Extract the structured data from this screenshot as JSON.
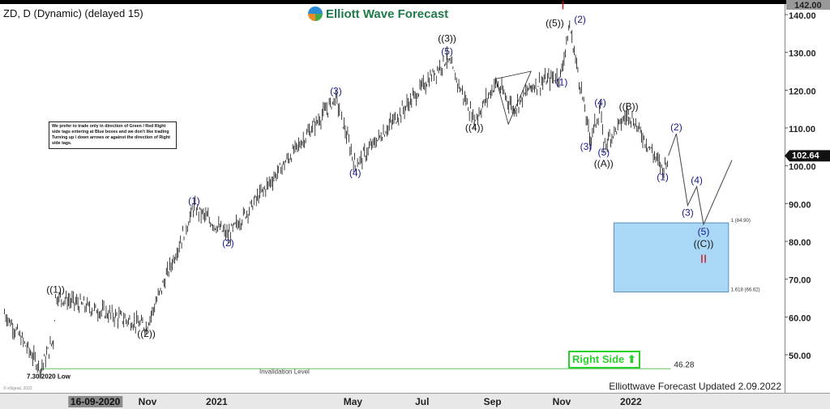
{
  "header": {
    "title": "ZD, D (Dynamic) (delayed 15)",
    "logo_text": "Elliott Wave Forecast"
  },
  "note": "We prefer to trade only in direction of Green / Red Right side tags entering at Blue boxes and we don't like trading Turning up / down arrows or against the direction of Right side tags.",
  "right_side_tag": "Right Side ⬆",
  "updated": "Elliottwave Forecast Updated 2.09.2022",
  "copyright": "© eSignal, 2022",
  "colors": {
    "wave_minor": "#1a1a8c",
    "wave_major": "#111111",
    "wave_degree": "#cc1111",
    "box": "#a9d8f7",
    "invalidation": "#8fd18f",
    "right_side": "#2bd12b",
    "bars": "#111111"
  },
  "chart_data": {
    "type": "ohlc-bar",
    "symbol": "ZD",
    "interval": "D",
    "ylim": [
      44,
      143
    ],
    "xlim": [
      "2020-06-24",
      "2022-04-25"
    ],
    "y_ticks": [
      "50.00",
      "60.00",
      "70.00",
      "80.00",
      "90.00",
      "100.00",
      "110.00",
      "120.00",
      "130.00",
      "140.00"
    ],
    "y_tick_values": [
      50,
      60,
      70,
      80,
      90,
      100,
      110,
      120,
      130,
      140
    ],
    "x_ticks": [
      {
        "label": "16-09-2020",
        "date": "2020-09-16",
        "highlight": true
      },
      {
        "label": "Nov",
        "date": "2020-11-01"
      },
      {
        "label": "2021",
        "date": "2021-01-01"
      },
      {
        "label": "May",
        "date": "2021-05-01"
      },
      {
        "label": "Jul",
        "date": "2021-07-01"
      },
      {
        "label": "Sep",
        "date": "2021-09-01"
      },
      {
        "label": "Nov",
        "date": "2021-11-01"
      },
      {
        "label": "2022",
        "date": "2022-01-01"
      }
    ],
    "high_marker": "142.00",
    "last_price": "102.64",
    "last_value": 102.64,
    "price_path": [
      [
        "2020-06-28",
        61
      ],
      [
        "2020-07-30",
        46.28
      ],
      [
        "2020-08-10",
        54
      ],
      [
        "2020-08-12",
        65.5
      ],
      [
        "2020-10-31",
        57.5
      ],
      [
        "2020-12-12",
        89
      ],
      [
        "2021-01-11",
        81.5
      ],
      [
        "2021-04-16",
        118
      ],
      [
        "2021-05-03",
        100
      ],
      [
        "2021-07-23",
        128.5
      ],
      [
        "2021-08-16",
        112
      ],
      [
        "2021-09-04",
        122
      ],
      [
        "2021-09-20",
        115
      ],
      [
        "2021-10-05",
        121
      ],
      [
        "2021-10-31",
        124
      ],
      [
        "2021-11-08",
        137
      ],
      [
        "2021-11-26",
        107
      ],
      [
        "2021-12-05",
        115
      ],
      [
        "2021-12-08",
        105.5
      ],
      [
        "2021-12-30",
        114
      ],
      [
        "2022-01-29",
        99
      ],
      [
        "2022-02-03",
        102.64
      ]
    ],
    "projection": [
      [
        "2022-02-03",
        102.64
      ],
      [
        "2022-02-10",
        108.5
      ],
      [
        "2022-02-20",
        89.5
      ],
      [
        "2022-02-28",
        94.5
      ],
      [
        "2022-03-06",
        84.5
      ],
      [
        "2022-03-31",
        101.5
      ]
    ],
    "triangle": [
      [
        "2021-09-04",
        123
      ],
      [
        "2021-10-05",
        125
      ],
      [
        "2021-09-15",
        111
      ]
    ],
    "wave_labels": [
      {
        "text": "((1))",
        "date": "2020-08-12",
        "price": 65.5,
        "pos": "above",
        "degree": "major"
      },
      {
        "text": "((2))",
        "date": "2020-10-31",
        "price": 57.5,
        "pos": "below",
        "degree": "major"
      },
      {
        "text": "(1)",
        "date": "2020-12-12",
        "price": 89,
        "pos": "above",
        "degree": "minor"
      },
      {
        "text": "(2)",
        "date": "2021-01-11",
        "price": 81.5,
        "pos": "below",
        "degree": "minor"
      },
      {
        "text": "(3)",
        "date": "2021-04-16",
        "price": 118,
        "pos": "above",
        "degree": "minor"
      },
      {
        "text": "(4)",
        "date": "2021-05-03",
        "price": 100,
        "pos": "below",
        "degree": "minor"
      },
      {
        "text": "(5)",
        "date": "2021-07-23",
        "price": 128.5,
        "pos": "above",
        "degree": "minor"
      },
      {
        "text": "((3))",
        "date": "2021-07-23",
        "price": 132,
        "pos": "above",
        "degree": "major"
      },
      {
        "text": "((4))",
        "date": "2021-08-16",
        "price": 112,
        "pos": "below",
        "degree": "major"
      },
      {
        "text": "((5))",
        "date": "2021-11-02",
        "price": 136,
        "pos": "above",
        "degree": "major"
      },
      {
        "text": "I",
        "date": "2021-11-02",
        "price": 140.5,
        "pos": "above",
        "degree": "degree"
      },
      {
        "text": "(2)",
        "date": "2021-11-10",
        "price": 137,
        "pos": "above",
        "degree": "minor"
      },
      {
        "text": "(1)",
        "date": "2021-11-01",
        "price": 124,
        "pos": "below",
        "degree": "minor"
      },
      {
        "text": "(3)",
        "date": "2021-11-26",
        "price": 107,
        "pos": "below",
        "degree": "minor"
      },
      {
        "text": "(4)",
        "date": "2021-12-05",
        "price": 115,
        "pos": "above",
        "degree": "minor"
      },
      {
        "text": "(5)",
        "date": "2021-12-08",
        "price": 105.5,
        "pos": "below",
        "degree": "minor"
      },
      {
        "text": "((A))",
        "date": "2021-12-08",
        "price": 102.5,
        "pos": "below",
        "degree": "major"
      },
      {
        "text": "((B))",
        "date": "2021-12-30",
        "price": 114,
        "pos": "above",
        "degree": "major"
      },
      {
        "text": "(1)",
        "date": "2022-01-29",
        "price": 99,
        "pos": "below",
        "degree": "minor"
      },
      {
        "text": "(2)",
        "date": "2022-02-10",
        "price": 108.5,
        "pos": "above",
        "degree": "minor"
      },
      {
        "text": "(3)",
        "date": "2022-02-20",
        "price": 89.5,
        "pos": "below",
        "degree": "minor"
      },
      {
        "text": "(4)",
        "date": "2022-02-28",
        "price": 94.5,
        "pos": "above",
        "degree": "minor"
      },
      {
        "text": "(5)",
        "date": "2022-03-06",
        "price": 84.5,
        "pos": "below",
        "degree": "minor"
      },
      {
        "text": "((C))",
        "date": "2022-03-06",
        "price": 81.3,
        "pos": "below",
        "degree": "major"
      },
      {
        "text": "II",
        "date": "2022-03-06",
        "price": 78,
        "pos": "below",
        "degree": "degree"
      }
    ],
    "blue_box": {
      "from": "2021-12-17",
      "to": "2022-03-28",
      "top": 84.9,
      "bottom": 66.62,
      "top_label": "1 (84.90)",
      "bottom_label": "1.618 (66.62)"
    },
    "invalidation": {
      "value": 46.28,
      "value_label": "46.28",
      "label": "Invalidation Level",
      "from": "2020-07-30",
      "to": "2022-02-05"
    },
    "low_label": "7.30.2020 Low"
  }
}
